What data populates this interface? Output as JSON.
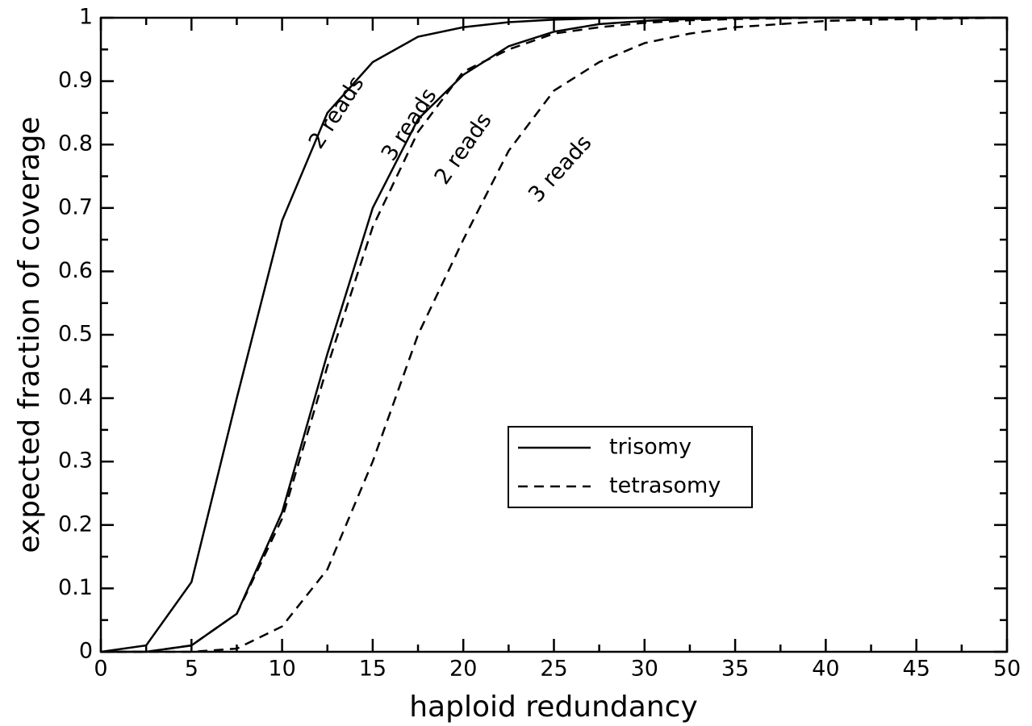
{
  "chart_data": {
    "type": "line",
    "xlabel": "haploid redundancy",
    "ylabel": "expected fraction of coverage",
    "x": [
      0,
      2.5,
      5,
      7.5,
      10,
      12.5,
      15,
      17.5,
      20,
      22.5,
      25,
      27.5,
      30,
      32.5,
      35,
      37.5,
      40,
      42.5,
      45,
      47.5,
      50
    ],
    "series": [
      {
        "name": "2 reads",
        "color": "#000000",
        "dash": "solid",
        "values": [
          0,
          0.01,
          0.11,
          0.4,
          0.68,
          0.85,
          0.93,
          0.97,
          0.985,
          0.993,
          0.997,
          0.999,
          1,
          1,
          1,
          1,
          1,
          1,
          1,
          1,
          1
        ]
      },
      {
        "name": "3 reads",
        "color": "#000000",
        "dash": "solid",
        "values": [
          0,
          0,
          0.01,
          0.06,
          0.22,
          0.47,
          0.7,
          0.84,
          0.91,
          0.955,
          0.978,
          0.99,
          0.995,
          0.998,
          1,
          1,
          1,
          1,
          1,
          1,
          1
        ]
      },
      {
        "name": "2 reads",
        "color": "#000000",
        "dash": "dashed",
        "values": [
          0,
          0,
          0.01,
          0.06,
          0.21,
          0.45,
          0.67,
          0.82,
          0.915,
          0.95,
          0.975,
          0.985,
          0.992,
          0.996,
          0.998,
          0.999,
          1,
          1,
          1,
          1,
          1
        ]
      },
      {
        "name": "3 reads",
        "color": "#000000",
        "dash": "dashed",
        "values": [
          0,
          0,
          0,
          0.005,
          0.04,
          0.13,
          0.3,
          0.5,
          0.65,
          0.79,
          0.885,
          0.93,
          0.96,
          0.975,
          0.985,
          0.99,
          0.995,
          0.997,
          0.998,
          0.999,
          1
        ]
      }
    ],
    "legend": [
      {
        "label": "trisomy",
        "dash": "solid"
      },
      {
        "label": "tetrasomy",
        "dash": "dashed"
      }
    ],
    "xlim": [
      0,
      50
    ],
    "xticks": [
      0,
      5,
      10,
      15,
      20,
      25,
      30,
      35,
      40,
      45,
      50
    ],
    "ylim": [
      0,
      1
    ],
    "yticks": [
      0,
      0.1,
      0.2,
      0.3,
      0.4,
      0.5,
      0.6,
      0.7,
      0.8,
      0.9,
      1
    ]
  }
}
